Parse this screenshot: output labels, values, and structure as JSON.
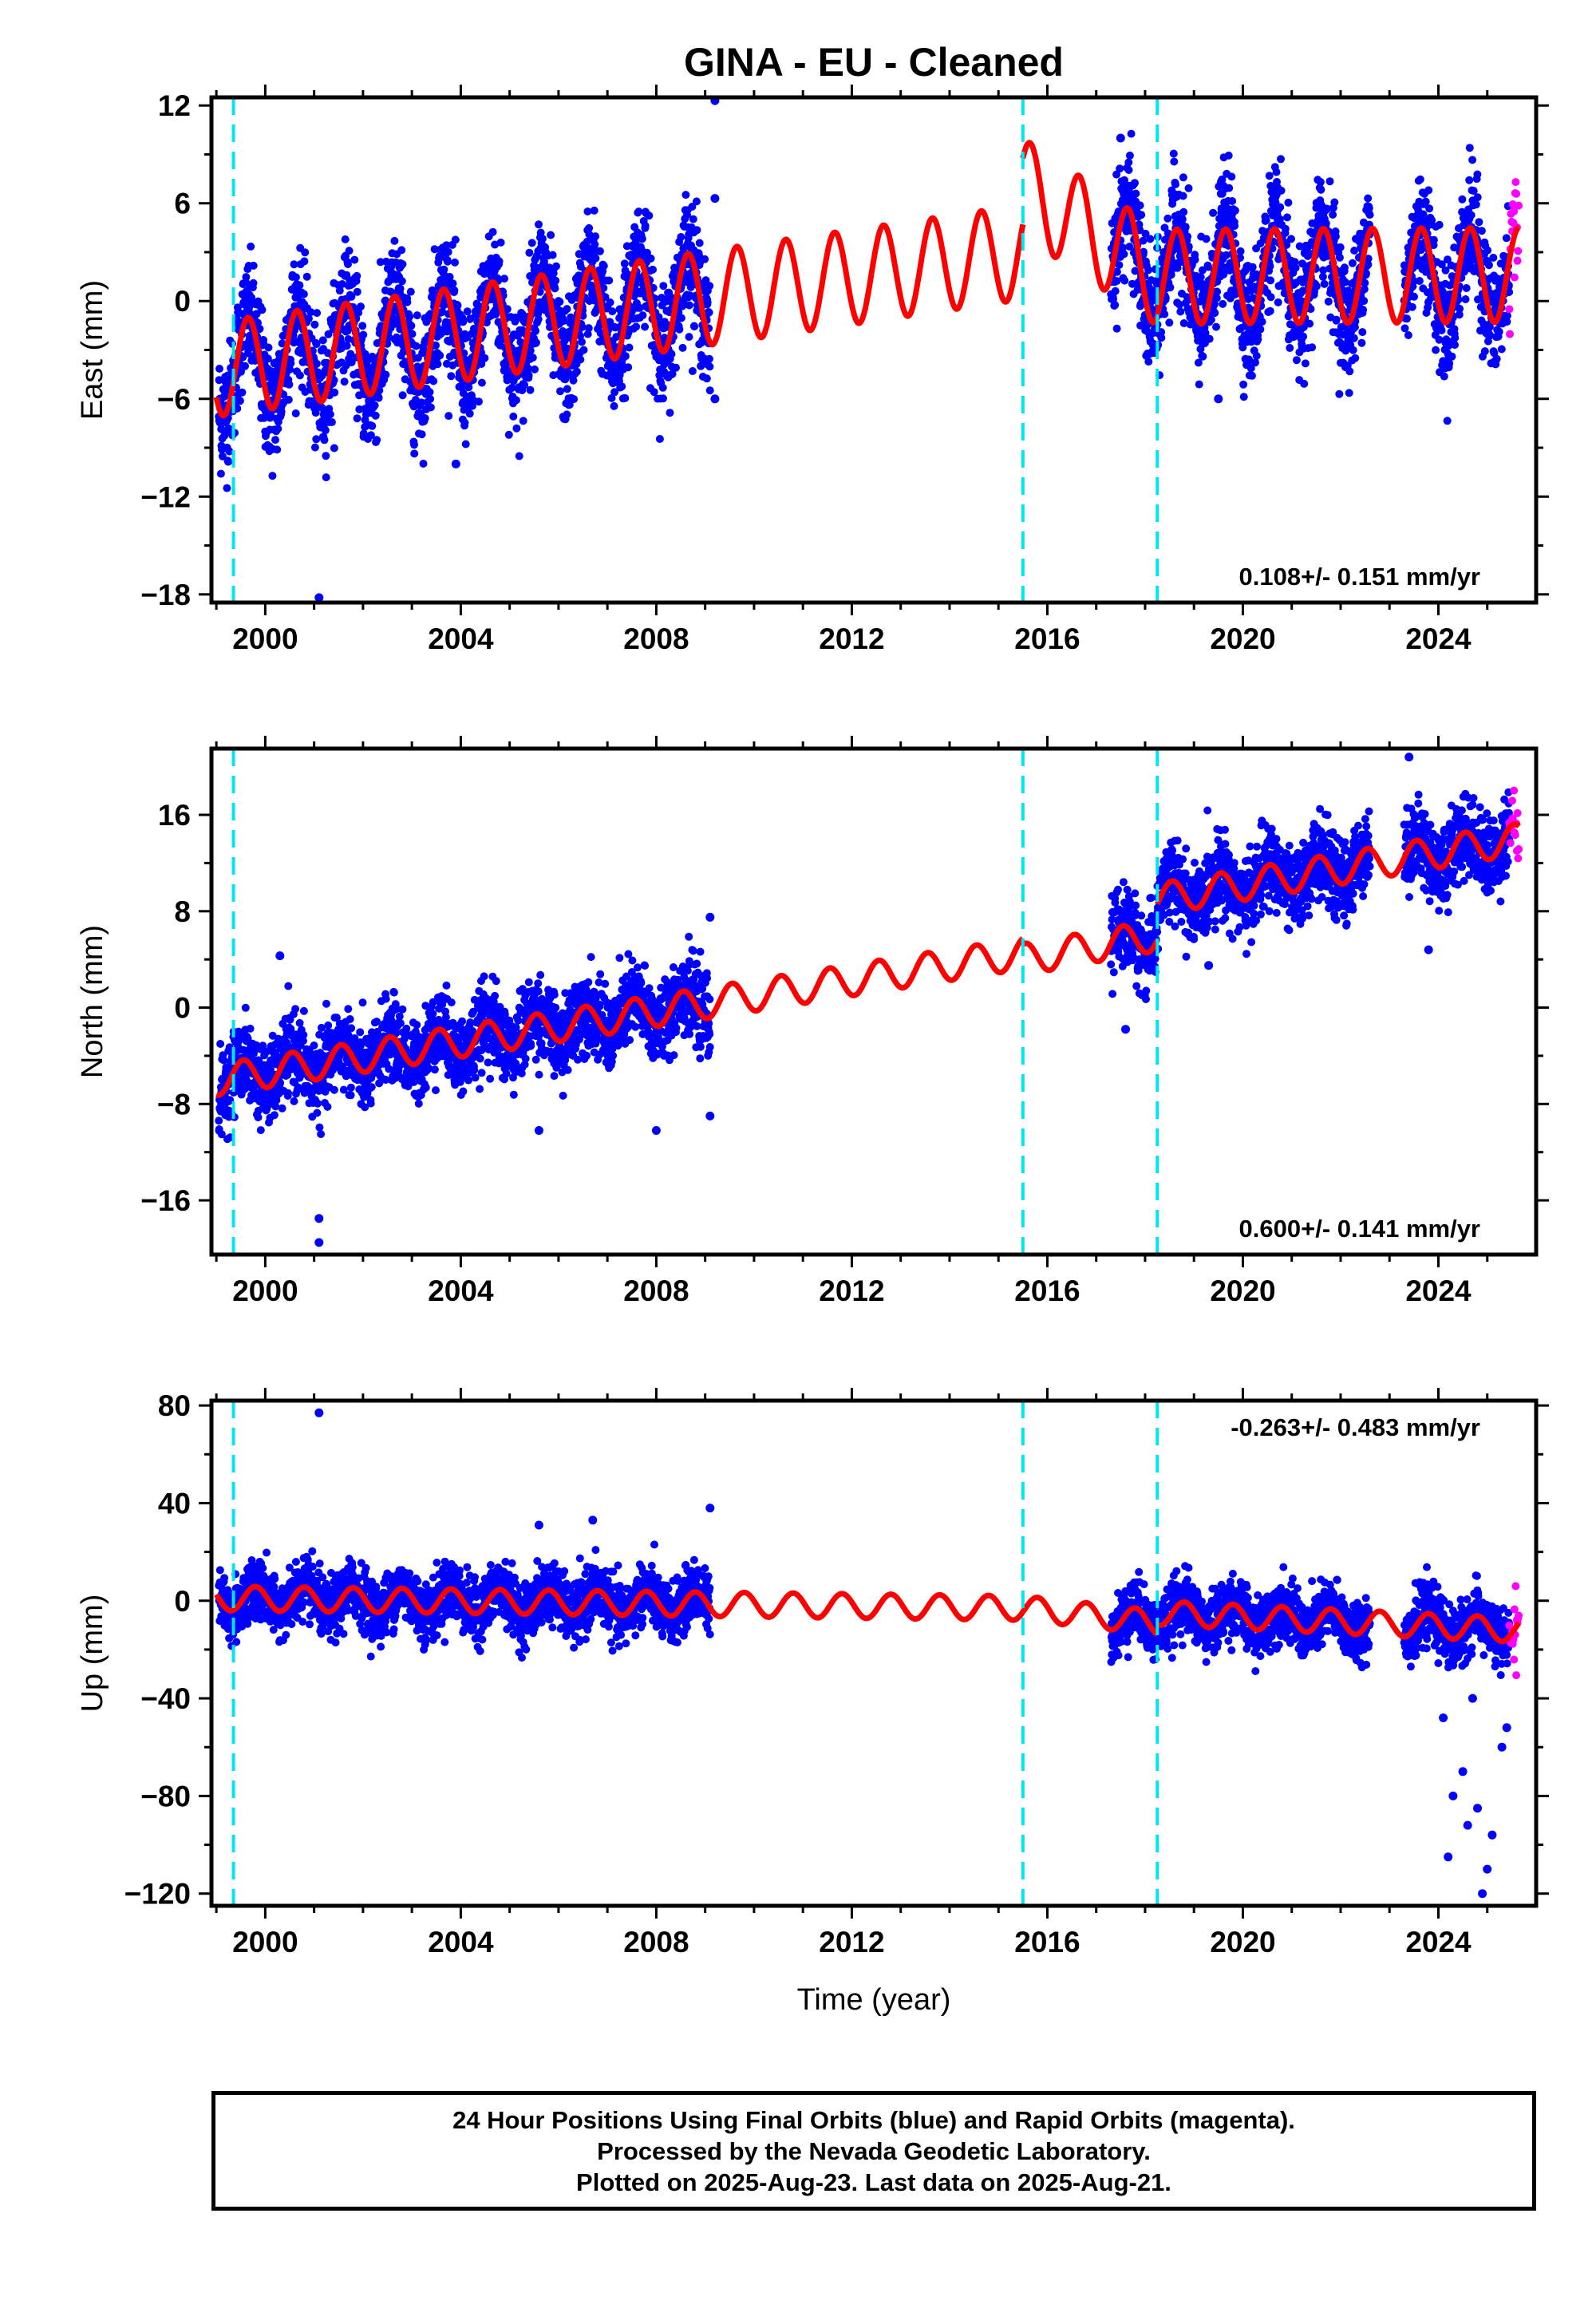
{
  "chart_data": {
    "title": "GINA  - EU - Cleaned",
    "type": "scatter",
    "xlabel": "Time (year)",
    "x_ticks": [
      2000,
      2004,
      2008,
      2012,
      2016,
      2020,
      2024
    ],
    "xlim": [
      1998.9,
      2026.0
    ],
    "offsets": [
      1999.35,
      2015.5,
      2018.25
    ],
    "data_gaps": [
      [
        2009.1,
        2017.3
      ],
      [
        2022.6,
        2023.3
      ]
    ],
    "colors": {
      "final": "#0000ff",
      "rapid": "#ff00ff",
      "model": "#ff0000",
      "offset": "#00e5ee"
    },
    "panels": [
      {
        "name": "east",
        "ylabel": "East (mm)",
        "ylim": [
          -18.5,
          12.5
        ],
        "y_ticks": [
          -18,
          -12,
          -6,
          0,
          6,
          12
        ],
        "rate_label": "0.108+/- 0.151 mm/yr",
        "rate_position": "bottom-right",
        "model_segments": [
          {
            "start": 1999.0,
            "end": 2015.5,
            "at_start": -4.2,
            "at_end": 3.0,
            "amplitude": 2.9,
            "phase": 0.4
          },
          {
            "start": 2015.5,
            "end": 2018.25,
            "at_start": 7.0,
            "at_end": 1.5,
            "amplitude": 3.0,
            "phase": 0.4
          },
          {
            "start": 2018.25,
            "end": 2025.65,
            "at_start": 1.5,
            "at_end": 1.6,
            "amplitude": 2.9,
            "phase": 0.4
          }
        ],
        "scatter_sd": 1.8,
        "outliers": [
          [
            2001.1,
            -18.2
          ],
          [
            2009.2,
            12.3
          ],
          [
            2009.2,
            6.3
          ],
          [
            2003.9,
            -10.0
          ],
          [
            2017.5,
            10.0
          ],
          [
            2019.5,
            -6.0
          ],
          [
            2009.2,
            -6.0
          ]
        ]
      },
      {
        "name": "north",
        "ylabel": "North (mm)",
        "ylim": [
          -20.5,
          21.5
        ],
        "y_ticks": [
          -16,
          -8,
          0,
          8,
          16
        ],
        "rate_label": "0.600+/- 0.141 mm/yr",
        "rate_position": "bottom-right",
        "model_segments": [
          {
            "start": 1999.0,
            "end": 2015.5,
            "at_start": -6.0,
            "at_end": 4.5,
            "amplitude": 1.3,
            "phase": 0.3
          },
          {
            "start": 2015.5,
            "end": 2018.25,
            "at_start": 4.0,
            "at_end": 6.0,
            "amplitude": 1.3,
            "phase": 0.3
          },
          {
            "start": 2018.25,
            "end": 2025.65,
            "at_start": 9.0,
            "at_end": 14.0,
            "amplitude": 1.3,
            "phase": 0.3
          }
        ],
        "scatter_sd": 1.6,
        "outliers": [
          [
            2001.1,
            -17.5
          ],
          [
            2001.1,
            -19.5
          ],
          [
            2000.3,
            4.3
          ],
          [
            2009.1,
            7.5
          ],
          [
            2009.1,
            -9.0
          ],
          [
            2017.6,
            -1.8
          ],
          [
            2023.4,
            20.8
          ],
          [
            2023.8,
            4.8
          ],
          [
            2005.6,
            -10.2
          ],
          [
            2008.0,
            -10.2
          ],
          [
            2019.3,
            3.5
          ]
        ]
      },
      {
        "name": "up",
        "ylabel": "Up (mm)",
        "ylim": [
          -125,
          82
        ],
        "y_ticks": [
          -120,
          -80,
          -40,
          0,
          40,
          80
        ],
        "rate_label": "-0.263+/- 0.483 mm/yr",
        "rate_position": "top-right",
        "model_segments": [
          {
            "start": 1999.0,
            "end": 2015.5,
            "at_start": 1.0,
            "at_end": -3.0,
            "amplitude": 5.0,
            "phase": 0.55
          },
          {
            "start": 2015.5,
            "end": 2018.25,
            "at_start": -3.0,
            "at_end": -9.0,
            "amplitude": 5.0,
            "phase": 0.55
          },
          {
            "start": 2018.25,
            "end": 2025.65,
            "at_start": -5.0,
            "at_end": -12.0,
            "amplitude": 5.0,
            "phase": 0.55
          }
        ],
        "scatter_sd": 6.0,
        "outliers": [
          [
            2001.1,
            77.0
          ],
          [
            2009.1,
            38.0
          ],
          [
            2005.6,
            31.0
          ],
          [
            2006.7,
            33.0
          ],
          [
            2024.2,
            -105.0
          ],
          [
            2024.9,
            -120.0
          ],
          [
            2024.6,
            -92.0
          ],
          [
            2024.3,
            -80.0
          ],
          [
            2025.0,
            -110.0
          ],
          [
            2025.3,
            -60.0
          ],
          [
            2024.5,
            -70.0
          ],
          [
            2024.8,
            -85.0
          ],
          [
            2025.1,
            -96.0
          ],
          [
            2024.1,
            -48.0
          ],
          [
            2025.4,
            -52.0
          ],
          [
            2024.7,
            -40.0
          ]
        ]
      }
    ]
  },
  "footer": {
    "line1": "24 Hour Positions Using Final Orbits (blue) and Rapid Orbits (magenta).",
    "line2": "Processed by the Nevada Geodetic Laboratory.",
    "line3": "Plotted on 2025-Aug-23. Last data on 2025-Aug-21."
  }
}
